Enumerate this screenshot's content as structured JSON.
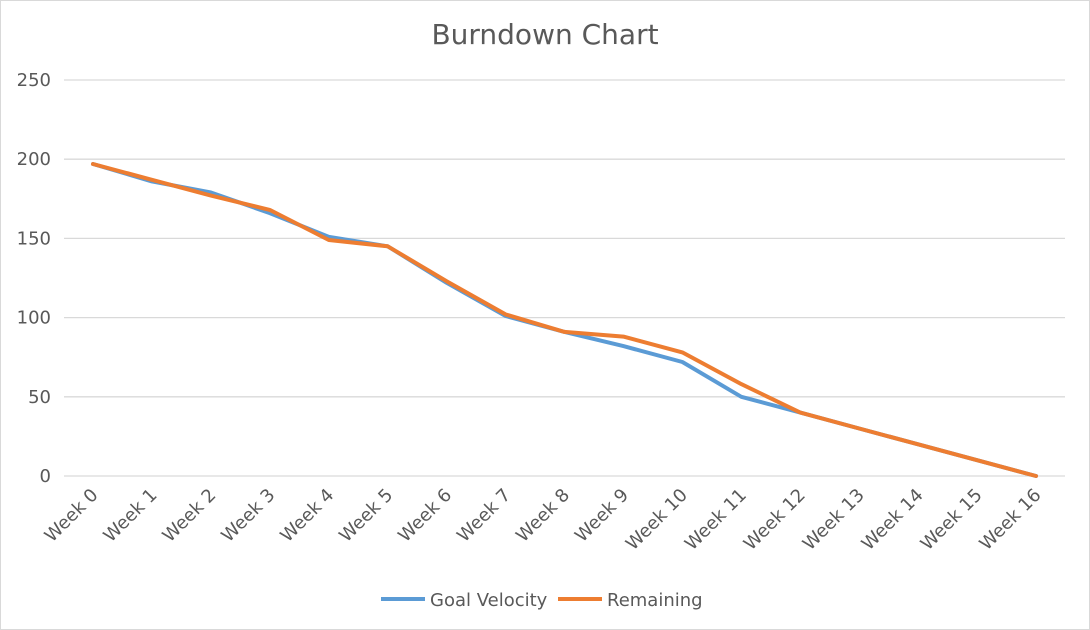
{
  "chart_data": {
    "type": "line",
    "title": "Burndown Chart",
    "xlabel": "",
    "ylabel": "",
    "categories": [
      "Week 0",
      "Week 1",
      "Week 2",
      "Week 3",
      "Week 4",
      "Week 5",
      "Week 6",
      "Week 7",
      "Week 8",
      "Week 9",
      "Week 10",
      "Week 11",
      "Week 12",
      "Week 13",
      "Week 14",
      "Week 15",
      "Week 16"
    ],
    "y_ticks": [
      "0",
      "50",
      "100",
      "150",
      "200",
      "250"
    ],
    "ylim": [
      0,
      250
    ],
    "grid": true,
    "legend_position": "bottom",
    "series": [
      {
        "name": "Goal Velocity",
        "color": "#5b9bd5",
        "values": [
          197,
          186,
          179,
          166,
          151,
          145,
          122,
          101,
          91,
          82,
          72,
          50,
          40,
          30,
          20,
          10,
          0
        ]
      },
      {
        "name": "Remaining",
        "color": "#ed7d31",
        "values": [
          197,
          187,
          177,
          168,
          149,
          145,
          123,
          102,
          91,
          88,
          78,
          58,
          40,
          30,
          20,
          10,
          0
        ]
      }
    ]
  }
}
